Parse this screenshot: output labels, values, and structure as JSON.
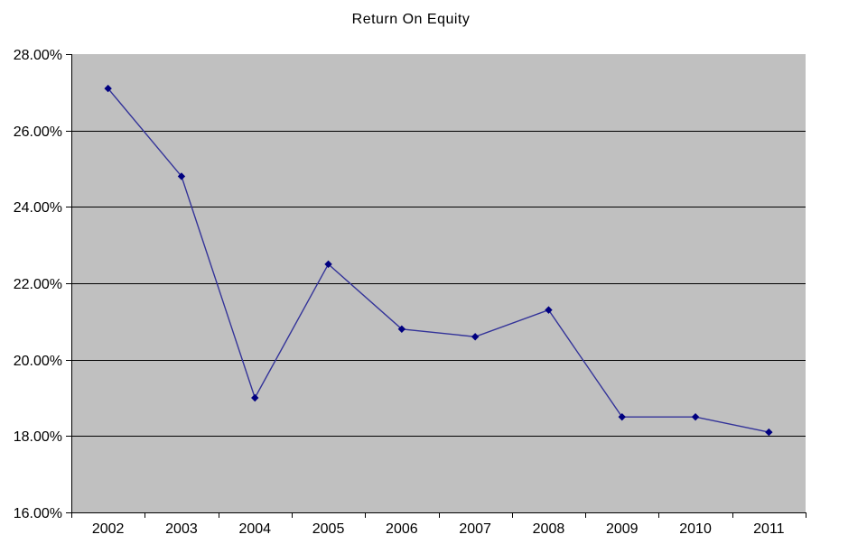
{
  "title": "Return On Equity",
  "chart_data": {
    "type": "line",
    "title": "Return On Equity",
    "categories": [
      "2002",
      "2003",
      "2004",
      "2005",
      "2006",
      "2007",
      "2008",
      "2009",
      "2010",
      "2011"
    ],
    "series": [
      {
        "name": "Return On Equity",
        "values": [
          27.1,
          24.8,
          19.0,
          22.5,
          20.8,
          20.6,
          21.3,
          18.5,
          18.5,
          18.1
        ]
      }
    ],
    "y_axis": {
      "min": 16,
      "max": 28,
      "step": 2,
      "tick_labels": [
        "16.00%",
        "18.00%",
        "20.00%",
        "22.00%",
        "24.00%",
        "26.00%",
        "28.00%"
      ]
    },
    "grid": true,
    "legend": "none",
    "marker": "diamond",
    "colors": {
      "page_background": "#ffffff",
      "plot_background": "#c0c0c0",
      "series_line": "#333399",
      "marker_fill": "#000080",
      "gridline": "#000000",
      "axis": "#000000",
      "label_text": "#000000"
    }
  }
}
